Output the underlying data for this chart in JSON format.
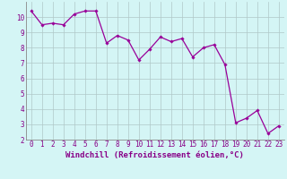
{
  "x": [
    0,
    1,
    2,
    3,
    4,
    5,
    6,
    7,
    8,
    9,
    10,
    11,
    12,
    13,
    14,
    15,
    16,
    17,
    18,
    19,
    20,
    21,
    22,
    23
  ],
  "y": [
    10.4,
    9.5,
    9.6,
    9.5,
    10.2,
    10.4,
    10.4,
    8.3,
    8.8,
    8.5,
    7.2,
    7.9,
    8.7,
    8.4,
    8.6,
    7.4,
    8.0,
    8.2,
    6.9,
    3.1,
    3.4,
    3.9,
    2.4,
    2.9
  ],
  "line_color": "#990099",
  "marker": "D",
  "markersize": 1.8,
  "linewidth": 0.9,
  "background_color": "#d4f5f5",
  "grid_color": "#b0c8c8",
  "xlabel": "Windchill (Refroidissement éolien,°C)",
  "xlabel_fontsize": 6.5,
  "xlim": [
    -0.5,
    23.5
  ],
  "ylim": [
    2,
    11
  ],
  "yticks": [
    2,
    3,
    4,
    5,
    6,
    7,
    8,
    9,
    10
  ],
  "xticks": [
    0,
    1,
    2,
    3,
    4,
    5,
    6,
    7,
    8,
    9,
    10,
    11,
    12,
    13,
    14,
    15,
    16,
    17,
    18,
    19,
    20,
    21,
    22,
    23
  ],
  "tick_fontsize": 5.5,
  "label_color": "#880088",
  "figure_bg": "#d4f5f5"
}
